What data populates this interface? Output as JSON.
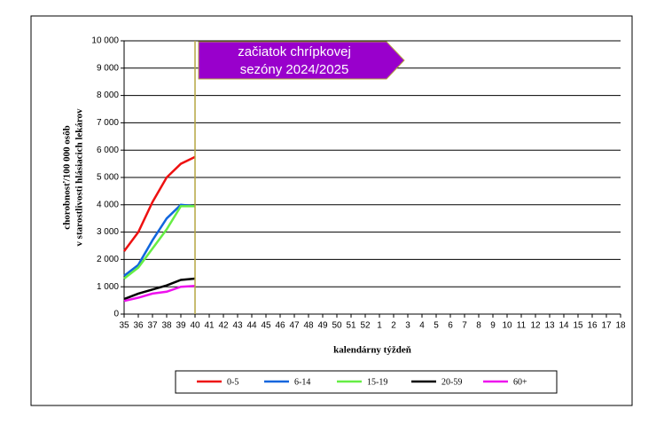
{
  "chart_data": {
    "type": "line",
    "y_label": [
      "chorobnosť/100 000 osôb",
      "v starostlivosti hlásiacich lekárov"
    ],
    "x_label": "kalendárny týždeň",
    "annotation": [
      "začiatok chrípkovej",
      "sezóny 2024/2025"
    ],
    "categories": [
      "35",
      "36",
      "37",
      "38",
      "39",
      "40",
      "41",
      "42",
      "43",
      "44",
      "45",
      "46",
      "47",
      "48",
      "49",
      "50",
      "51",
      "52",
      "1",
      "2",
      "3",
      "4",
      "5",
      "6",
      "7",
      "8",
      "9",
      "10",
      "11",
      "12",
      "13",
      "14",
      "15",
      "16",
      "17",
      "18"
    ],
    "series": [
      {
        "name": "0-5",
        "color": "#ee1111",
        "values": [
          2300,
          3000,
          4100,
          5000,
          5500,
          5750,
          null,
          null,
          null,
          null,
          null,
          null,
          null,
          null,
          null,
          null,
          null,
          null,
          null,
          null,
          null,
          null,
          null,
          null,
          null,
          null,
          null,
          null,
          null,
          null,
          null,
          null,
          null,
          null,
          null,
          null
        ]
      },
      {
        "name": "6-14",
        "color": "#1166dd",
        "values": [
          1400,
          1800,
          2700,
          3500,
          4000,
          3950,
          null,
          null,
          null,
          null,
          null,
          null,
          null,
          null,
          null,
          null,
          null,
          null,
          null,
          null,
          null,
          null,
          null,
          null,
          null,
          null,
          null,
          null,
          null,
          null,
          null,
          null,
          null,
          null,
          null,
          null
        ]
      },
      {
        "name": "15-19",
        "color": "#66ee44",
        "values": [
          1300,
          1700,
          2400,
          3100,
          3950,
          3950,
          null,
          null,
          null,
          null,
          null,
          null,
          null,
          null,
          null,
          null,
          null,
          null,
          null,
          null,
          null,
          null,
          null,
          null,
          null,
          null,
          null,
          null,
          null,
          null,
          null,
          null,
          null,
          null,
          null,
          null
        ]
      },
      {
        "name": "20-59",
        "color": "#000000",
        "values": [
          550,
          750,
          900,
          1050,
          1250,
          1300,
          null,
          null,
          null,
          null,
          null,
          null,
          null,
          null,
          null,
          null,
          null,
          null,
          null,
          null,
          null,
          null,
          null,
          null,
          null,
          null,
          null,
          null,
          null,
          null,
          null,
          null,
          null,
          null,
          null,
          null
        ]
      },
      {
        "name": "60+",
        "color": "#ee11ee",
        "values": [
          480,
          600,
          750,
          820,
          1000,
          1030,
          null,
          null,
          null,
          null,
          null,
          null,
          null,
          null,
          null,
          null,
          null,
          null,
          null,
          null,
          null,
          null,
          null,
          null,
          null,
          null,
          null,
          null,
          null,
          null,
          null,
          null,
          null,
          null,
          null,
          null
        ]
      }
    ],
    "ylim": [
      0,
      10000
    ],
    "yticks": [
      0,
      {
        "value": 1000,
        "label": "1 000"
      },
      {
        "value": 2000,
        "label": "2 000"
      },
      {
        "value": 3000,
        "label": "3 000"
      },
      {
        "value": 4000,
        "label": "4 000"
      },
      {
        "value": 5000,
        "label": "5 000"
      },
      {
        "value": 6000,
        "label": "6 000"
      },
      {
        "value": 7000,
        "label": "7 000"
      },
      {
        "value": 8000,
        "label": "8 000"
      },
      {
        "value": 9000,
        "label": "9 000"
      },
      {
        "value": 10000,
        "label": "10 000"
      }
    ],
    "grid": true
  }
}
